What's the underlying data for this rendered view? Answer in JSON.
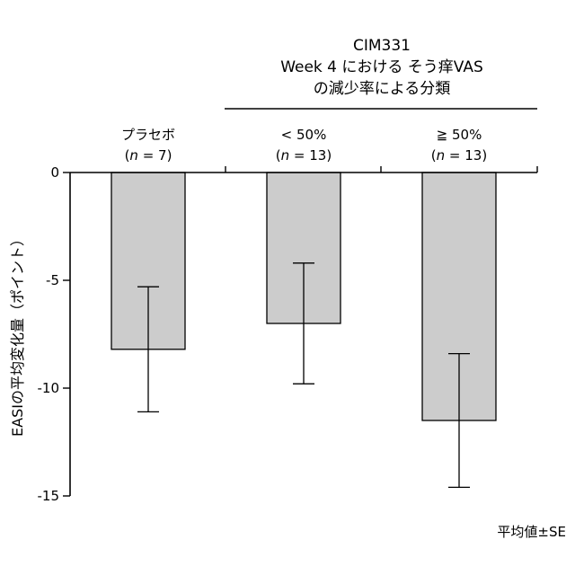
{
  "chart_data": {
    "type": "bar",
    "title_lines": [
      "CIM331",
      "Week 4 における そう痒VAS",
      "の減少率による分類"
    ],
    "categories": [
      "プラセボ",
      "< 50%",
      "≧ 50%"
    ],
    "n_labels": [
      {
        "prefix": "(",
        "n": "n",
        "rest": " = 7)"
      },
      {
        "prefix": "(",
        "n": "n",
        "rest": " = 13)"
      },
      {
        "prefix": "(",
        "n": "n",
        "rest": " = 13)"
      }
    ],
    "values": [
      -8.2,
      -7.0,
      -11.5
    ],
    "errors": [
      2.9,
      2.8,
      3.1
    ],
    "ylabel": "EASIの平均変化量（ポイント）",
    "ylim": [
      -15,
      0
    ],
    "yticks": [
      0,
      -5,
      -10,
      -15
    ],
    "ytick_labels": [
      "0",
      "-5",
      "-10",
      "-15"
    ],
    "note": "平均値±SE",
    "bar_color": "#cccccc",
    "bar_stroke": "#000000"
  }
}
